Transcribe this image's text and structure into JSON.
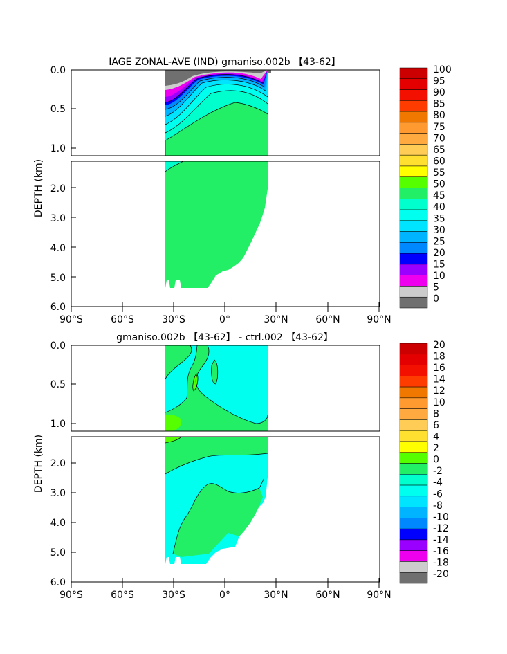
{
  "chart_data": [
    {
      "type": "heatmap",
      "title": "IAGE ZONAL-AVE (IND) gmaniso.002b 【43-62】",
      "ylabel": "DEPTH (km)",
      "x_ticks": [
        "90°S",
        "60°S",
        "30°S",
        "0°",
        "30°N",
        "60°N",
        "90°N"
      ],
      "y_ticks": [
        "0.0",
        "0.5",
        "1.0",
        "2.0",
        "3.0",
        "4.0",
        "5.0",
        "6.0"
      ],
      "xlim": [
        -90,
        90
      ],
      "ylim": [
        6.0,
        0.0
      ],
      "colorbar_levels": [
        "100",
        "95",
        "90",
        "85",
        "80",
        "75",
        "70",
        "65",
        "60",
        "55",
        "50",
        "45",
        "40",
        "35",
        "30",
        "25",
        "20",
        "15",
        "10",
        "5",
        "0"
      ],
      "colorbar_colors": [
        "#cc0000",
        "#e40000",
        "#f41000",
        "#ff3c00",
        "#f07800",
        "#ff9a30",
        "#ffaa40",
        "#ffcc55",
        "#ffe030",
        "#ffff00",
        "#55ff00",
        "#22ee66",
        "#00ffcc",
        "#00ffee",
        "#00e4ff",
        "#00b4ff",
        "#0088ff",
        "#0000ff",
        "#9900ff",
        "#ee00ee",
        "#cccccc",
        "#707070"
      ],
      "regions": {
        "land_left_lat": -35,
        "land_right_lat": 26,
        "dominant_value": "50-55"
      }
    },
    {
      "type": "heatmap",
      "title": "gmaniso.002b 【43-62】 - ctrl.002 【43-62】",
      "ylabel": "DEPTH (km)",
      "x_ticks": [
        "90°S",
        "60°S",
        "30°S",
        "0°",
        "30°N",
        "60°N",
        "90°N"
      ],
      "y_ticks": [
        "0.0",
        "0.5",
        "1.0",
        "2.0",
        "3.0",
        "4.0",
        "5.0",
        "6.0"
      ],
      "xlim": [
        -90,
        90
      ],
      "ylim": [
        6.0,
        0.0
      ],
      "colorbar_levels": [
        "20",
        "18",
        "16",
        "14",
        "12",
        "10",
        "8",
        "6",
        "4",
        "2",
        "0",
        "-2",
        "-4",
        "-6",
        "-8",
        "-10",
        "-12",
        "-14",
        "-16",
        "-18",
        "-20"
      ],
      "colorbar_colors": [
        "#cc0000",
        "#e40000",
        "#f41000",
        "#ff3c00",
        "#f07800",
        "#ff9a30",
        "#ffaa40",
        "#ffcc55",
        "#ffe030",
        "#ffff00",
        "#55ff00",
        "#22ee66",
        "#00ffcc",
        "#00ffee",
        "#00e4ff",
        "#00b4ff",
        "#0088ff",
        "#0000ff",
        "#9900ff",
        "#ee00ee",
        "#cccccc",
        "#707070"
      ],
      "regions": {
        "land_left_lat": -35,
        "land_right_lat": 26,
        "dominant_value": "0 to 2 / -2 to 0"
      }
    }
  ]
}
